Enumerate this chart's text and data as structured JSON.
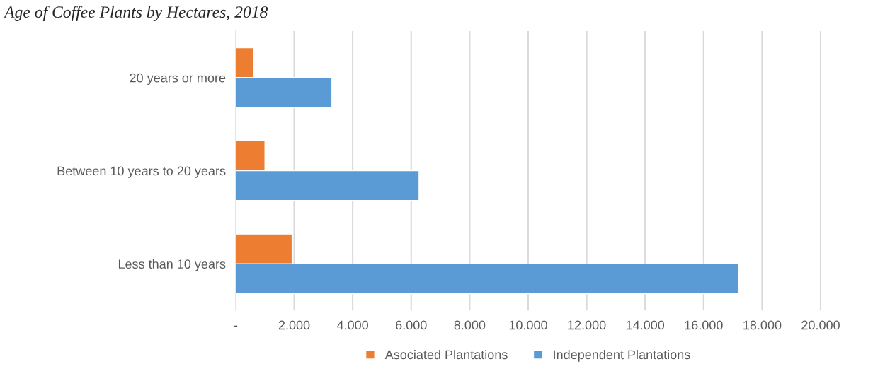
{
  "chart_data": {
    "type": "bar",
    "orientation": "horizontal",
    "title": "Age of Coffee Plants by Hectares, 2018",
    "categories": [
      "20 years or more",
      "Between 10 years to 20 years",
      "Less than 10 years"
    ],
    "series": [
      {
        "name": "Asociated Plantations",
        "color": "#ed7d31",
        "values": [
          600,
          1000,
          1930
        ]
      },
      {
        "name": "Independent Plantations",
        "color": "#5b9bd5",
        "values": [
          3290,
          6270,
          17200
        ]
      }
    ],
    "xlim": [
      0,
      20000
    ],
    "xticks": [
      {
        "value": 0,
        "label": "-"
      },
      {
        "value": 2000,
        "label": "2.000"
      },
      {
        "value": 4000,
        "label": "4.000"
      },
      {
        "value": 6000,
        "label": "6.000"
      },
      {
        "value": 8000,
        "label": "8.000"
      },
      {
        "value": 10000,
        "label": "10.000"
      },
      {
        "value": 12000,
        "label": "12.000"
      },
      {
        "value": 14000,
        "label": "14.000"
      },
      {
        "value": 16000,
        "label": "16.000"
      },
      {
        "value": 18000,
        "label": "18.000"
      },
      {
        "value": 20000,
        "label": "20.000"
      }
    ],
    "grid": "x",
    "legend": "bottom"
  }
}
